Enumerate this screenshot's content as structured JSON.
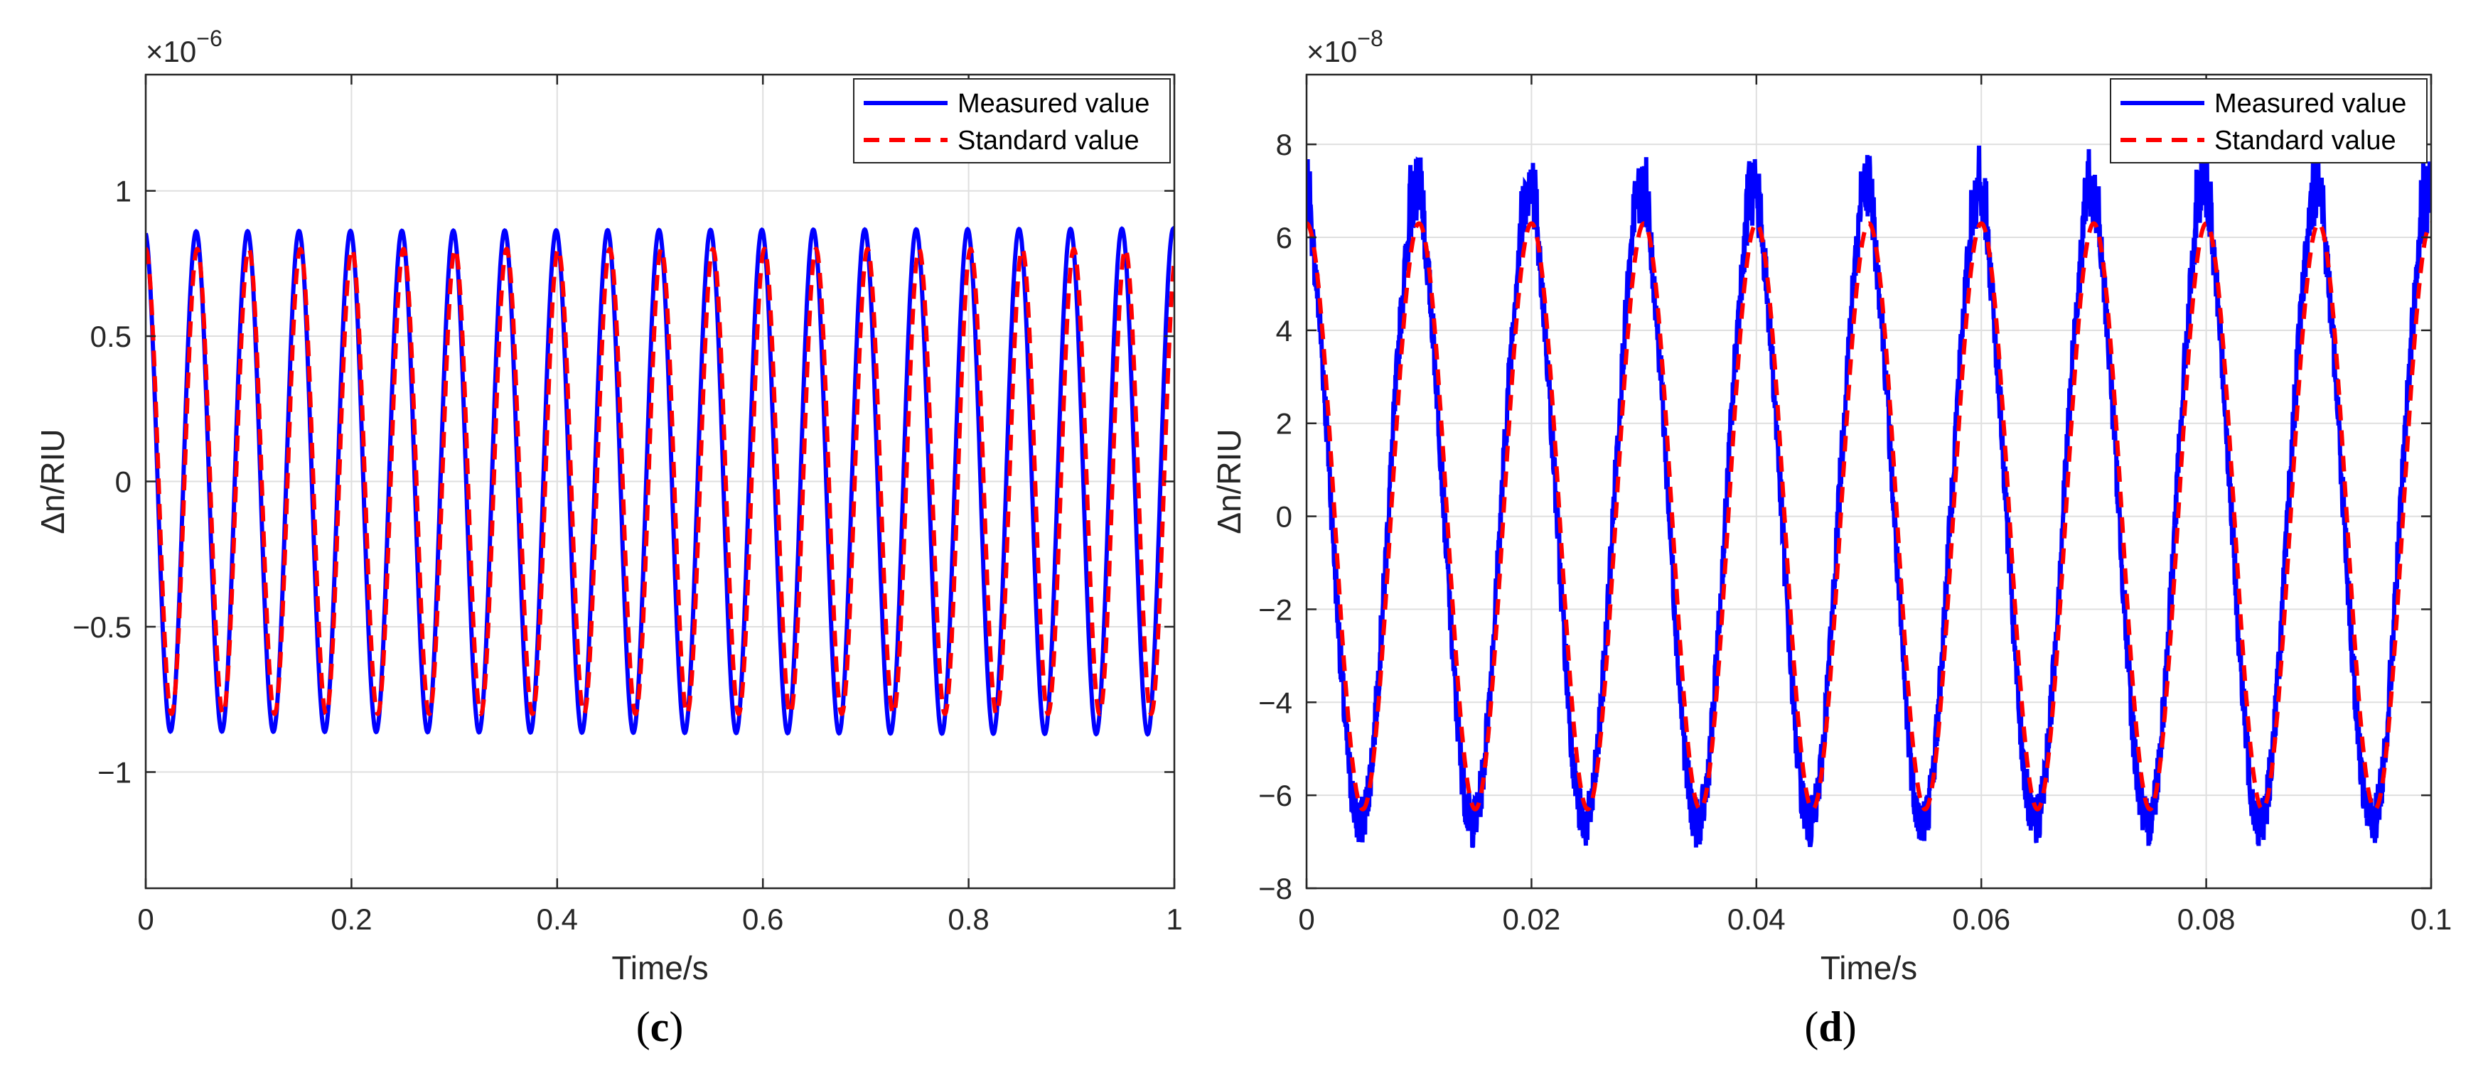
{
  "chart_data": [
    {
      "type": "line",
      "panel_label": "c",
      "xlabel": "Time/s",
      "ylabel": "Δn/RIU",
      "y_exponent": "−6",
      "xlim": [
        0,
        1
      ],
      "ylim": [
        -1.4,
        1.4
      ],
      "x_ticks": [
        0,
        0.2,
        0.4,
        0.6,
        0.8,
        1
      ],
      "x_tick_labels": [
        "0",
        "0.2",
        "0.4",
        "0.6",
        "0.8",
        "1"
      ],
      "y_ticks": [
        -1,
        -0.5,
        0,
        0.5,
        1
      ],
      "y_tick_labels": [
        "−1",
        "−0.5",
        "0",
        "0.5",
        "1"
      ],
      "grid": true,
      "legend_position": "top-right",
      "series": [
        {
          "name": "Measured value",
          "color": "#0000FF",
          "style": "solid",
          "function": "sinusoid",
          "frequency_hz": 20,
          "amplitude_start": 0.86,
          "amplitude_end": 0.87,
          "phase": "cosine",
          "y0": 0.75
        },
        {
          "name": "Standard value",
          "color": "#FF0000",
          "style": "dashed",
          "function": "sinusoid",
          "frequency_hz": 19.95,
          "amplitude": 0.8,
          "phase": "cosine",
          "y0": 0.78
        }
      ]
    },
    {
      "type": "line",
      "panel_label": "d",
      "xlabel": "Time/s",
      "ylabel": "Δn/RIU",
      "y_exponent": "−8",
      "xlim": [
        0,
        0.1
      ],
      "ylim": [
        -8,
        9.5
      ],
      "x_ticks": [
        0,
        0.02,
        0.04,
        0.06,
        0.08,
        0.1
      ],
      "x_tick_labels": [
        "0",
        "0.02",
        "0.04",
        "0.06",
        "0.08",
        "0.1"
      ],
      "y_ticks": [
        -8,
        -6,
        -4,
        -2,
        0,
        2,
        4,
        6,
        8
      ],
      "y_tick_labels": [
        "−8",
        "−6",
        "−4",
        "−2",
        "0",
        "2",
        "4",
        "6",
        "8"
      ],
      "grid": true,
      "legend_position": "top-right",
      "series": [
        {
          "name": "Measured value",
          "color": "#0000FF",
          "style": "solid",
          "function": "noisy sinusoid",
          "frequency_hz": 100,
          "amplitude": 6.6,
          "peak_max": 7.5,
          "trough_min": -6.6,
          "phase": "cosine"
        },
        {
          "name": "Standard value",
          "color": "#FF0000",
          "style": "dashed",
          "function": "sinusoid",
          "frequency_hz": 100,
          "amplitude": 6.3,
          "phase": "cosine"
        }
      ]
    }
  ]
}
